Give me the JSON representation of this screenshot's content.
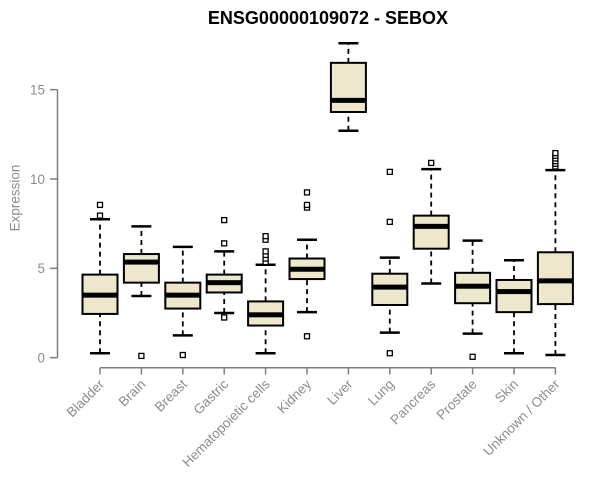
{
  "chart_data": {
    "type": "boxplot",
    "title": "ENSG00000109072 - SEBOX",
    "ylabel": "Expression",
    "xlabel": "",
    "yticks": [
      0,
      5,
      10,
      15
    ],
    "ylim": [
      -0.3,
      17.8
    ],
    "grid": false,
    "legend": false,
    "colors": {
      "box_fill": "#ede7cb",
      "box_stroke": "#000000",
      "median": "#000000",
      "outlier_fill": "#ffffff",
      "axis": "#7e7e7e",
      "tick_text": "#8c8c8c",
      "title_text": "#000000",
      "background": "#ffffff"
    },
    "categories": [
      "Bladder",
      "Brain",
      "Breast",
      "Gastric",
      "Hematopoietic cells",
      "Kidney",
      "Liver",
      "Lung",
      "Pancreas",
      "Prostate",
      "Skin",
      "Unknown / Other"
    ],
    "series": [
      {
        "name": "Bladder",
        "whisker_low": 0.25,
        "q1": 2.45,
        "median": 3.5,
        "q3": 4.65,
        "whisker_high": 7.75,
        "outliers": [
          7.95,
          8.55
        ]
      },
      {
        "name": "Brain",
        "whisker_low": 3.45,
        "q1": 4.2,
        "median": 5.35,
        "q3": 5.8,
        "whisker_high": 7.35,
        "outliers": [
          0.1
        ]
      },
      {
        "name": "Breast",
        "whisker_low": 1.25,
        "q1": 2.75,
        "median": 3.5,
        "q3": 4.2,
        "whisker_high": 6.2,
        "outliers": [
          0.15
        ]
      },
      {
        "name": "Gastric",
        "whisker_low": 2.5,
        "q1": 3.65,
        "median": 4.2,
        "q3": 4.65,
        "whisker_high": 5.95,
        "outliers": [
          2.25,
          6.4,
          7.7
        ]
      },
      {
        "name": "Hematopoietic cells",
        "whisker_low": 0.25,
        "q1": 1.8,
        "median": 2.4,
        "q3": 3.15,
        "whisker_high": 5.2,
        "outliers": [
          5.35,
          5.55,
          5.75,
          5.95,
          6.6,
          6.8
        ]
      },
      {
        "name": "Kidney",
        "whisker_low": 2.55,
        "q1": 4.4,
        "median": 4.95,
        "q3": 5.55,
        "whisker_high": 6.6,
        "outliers": [
          1.2,
          8.4,
          8.55,
          9.25
        ]
      },
      {
        "name": "Liver",
        "whisker_low": 12.7,
        "q1": 13.75,
        "median": 14.4,
        "q3": 16.5,
        "whisker_high": 17.6,
        "outliers": []
      },
      {
        "name": "Lung",
        "whisker_low": 1.4,
        "q1": 2.95,
        "median": 3.95,
        "q3": 4.7,
        "whisker_high": 5.6,
        "outliers": [
          0.25,
          7.6,
          10.4
        ]
      },
      {
        "name": "Pancreas",
        "whisker_low": 4.15,
        "q1": 6.1,
        "median": 7.35,
        "q3": 7.95,
        "whisker_high": 10.55,
        "outliers": [
          10.9
        ]
      },
      {
        "name": "Prostate",
        "whisker_low": 1.35,
        "q1": 3.05,
        "median": 4.0,
        "q3": 4.75,
        "whisker_high": 6.55,
        "outliers": [
          0.05
        ]
      },
      {
        "name": "Skin",
        "whisker_low": 0.25,
        "q1": 2.55,
        "median": 3.7,
        "q3": 4.35,
        "whisker_high": 5.45,
        "outliers": []
      },
      {
        "name": "Unknown / Other",
        "whisker_low": 0.15,
        "q1": 3.0,
        "median": 4.3,
        "q3": 5.9,
        "whisker_high": 10.5,
        "outliers": [
          10.7,
          10.85,
          11.0,
          11.15,
          11.3,
          11.45
        ]
      }
    ]
  }
}
